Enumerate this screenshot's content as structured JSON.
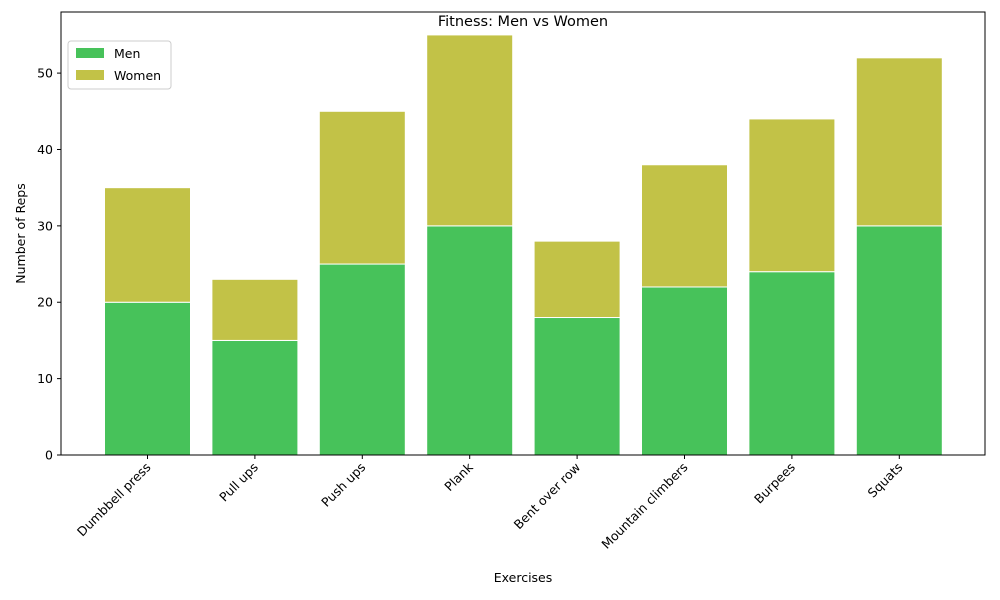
{
  "chart_data": {
    "type": "bar",
    "stacked": true,
    "title": "Fitness: Men vs Women",
    "xlabel": "Exercises",
    "ylabel": "Number of Reps",
    "categories": [
      "Dumbbell press",
      "Pull ups",
      "Push ups",
      "Plank",
      "Bent over row",
      "Mountain climbers",
      "Burpees",
      "Squats"
    ],
    "series": [
      {
        "name": "Men",
        "color": "#47c25a",
        "values": [
          20,
          15,
          25,
          30,
          18,
          22,
          24,
          30
        ]
      },
      {
        "name": "Women",
        "color": "#c2c247",
        "values": [
          15,
          8,
          20,
          25,
          10,
          16,
          20,
          22
        ]
      }
    ],
    "ylim": [
      0,
      58
    ],
    "yticks": [
      0,
      10,
      20,
      30,
      40,
      50
    ],
    "legend_position": "top-left",
    "grid": false
  }
}
